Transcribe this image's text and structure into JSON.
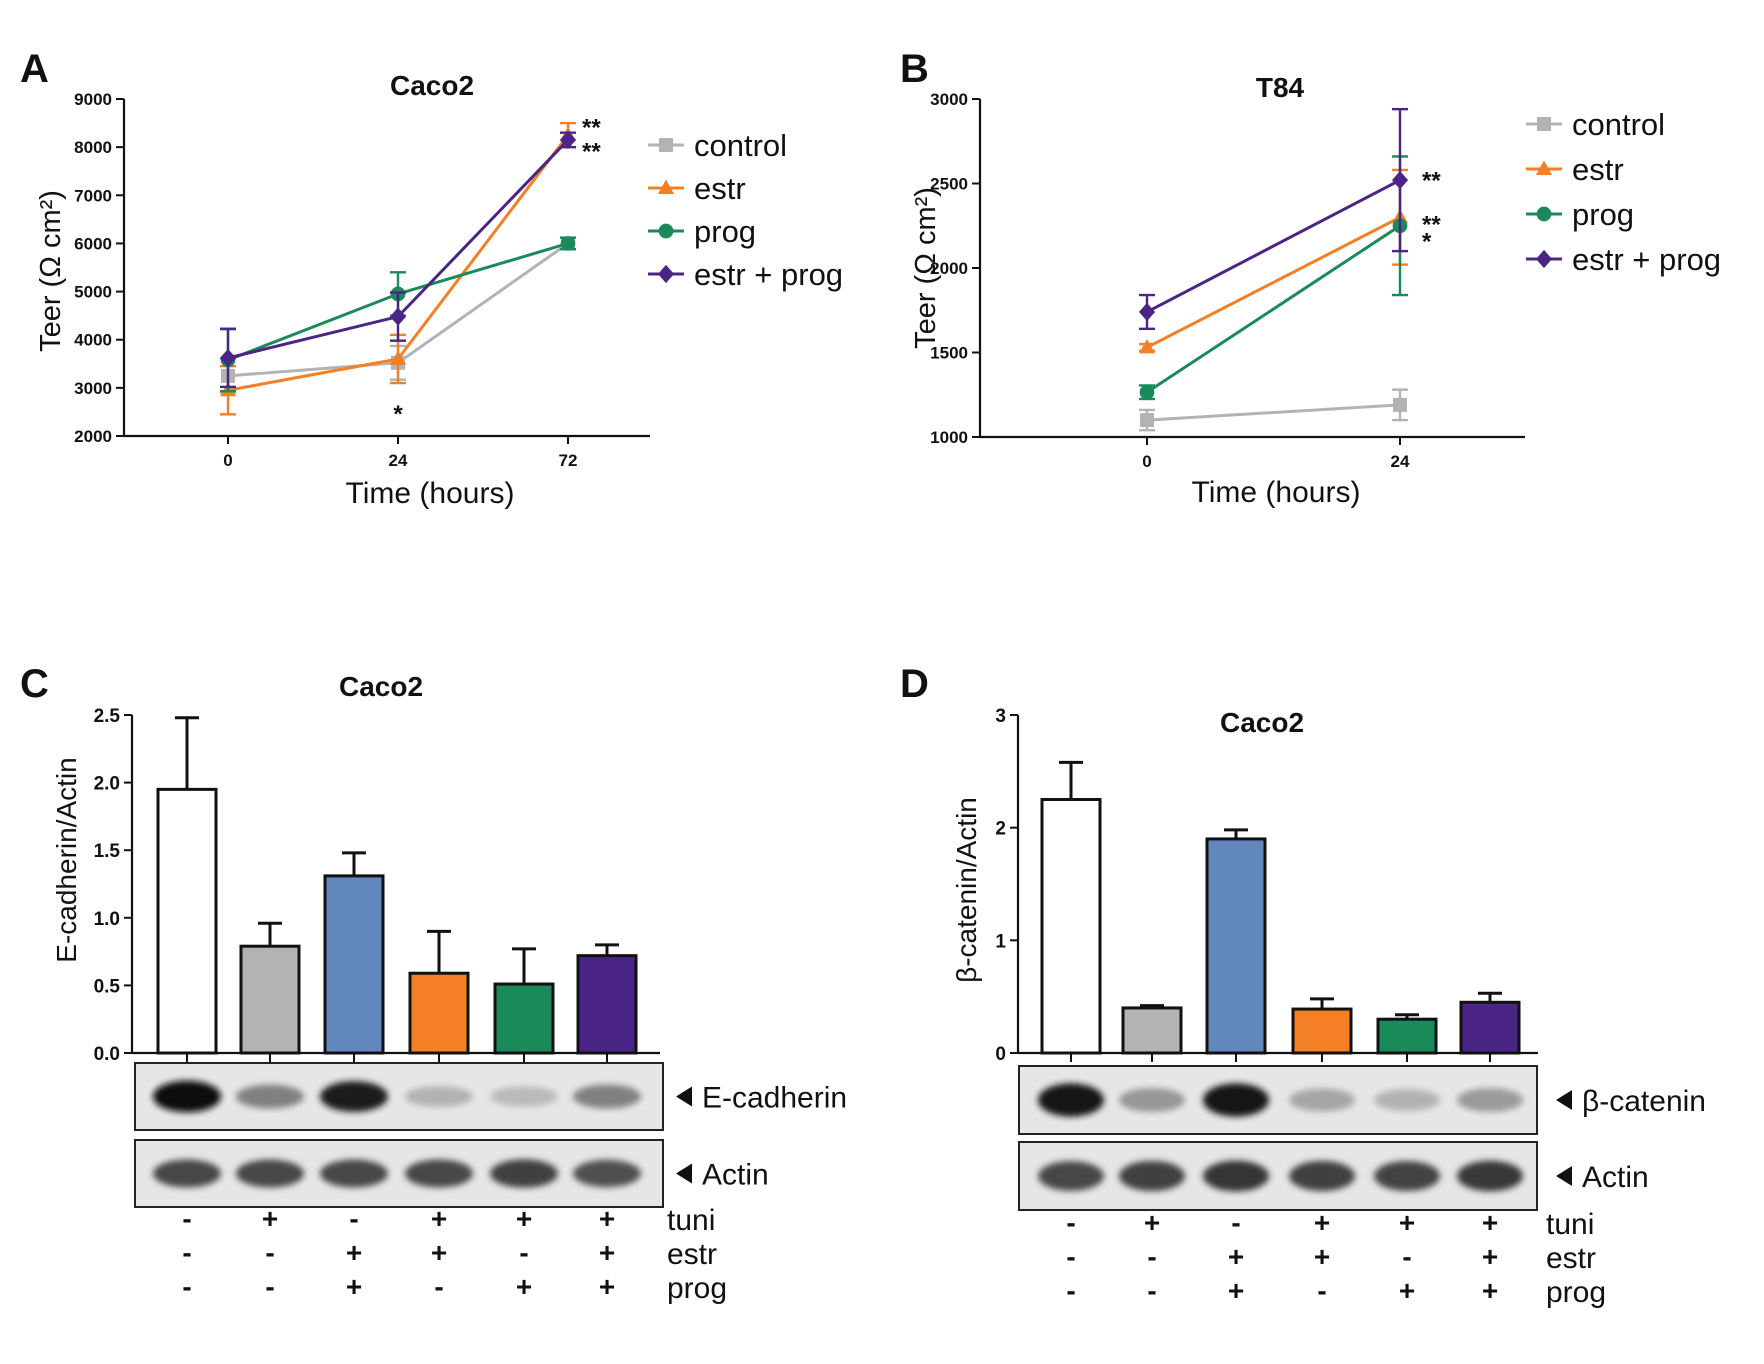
{
  "chart_data": [
    {
      "panel": "A",
      "type": "line",
      "title": "Caco2",
      "xlabel": "Time (hours)",
      "ylabel": "Teer (Ω cm²)",
      "categories": [
        "0",
        "24",
        "72"
      ],
      "ylim": [
        2000,
        9000
      ],
      "yticks": [
        2000,
        3000,
        4000,
        5000,
        6000,
        7000,
        8000,
        9000
      ],
      "series": [
        {
          "name": "control",
          "color": "#b3b3b3",
          "marker": "square",
          "values": [
            3250,
            3520,
            6000
          ],
          "errors": [
            350,
            350,
            120
          ]
        },
        {
          "name": "estr",
          "color": "#f47f24",
          "marker": "triangle",
          "values": [
            2950,
            3600,
            8250
          ],
          "errors": [
            500,
            500,
            250
          ]
        },
        {
          "name": "prog",
          "color": "#1a8a5a",
          "marker": "circle",
          "values": [
            3580,
            4950,
            6000
          ],
          "errors": [
            650,
            450,
            120
          ]
        },
        {
          "name": "estr + prog",
          "color": "#4b2585",
          "marker": "diamond",
          "values": [
            3620,
            4480,
            8150
          ],
          "errors": [
            600,
            500,
            150
          ]
        }
      ],
      "annotations": [
        {
          "text": "**",
          "category": "72",
          "value": 8450
        },
        {
          "text": "**",
          "category": "72",
          "value": 7950
        },
        {
          "text": "*",
          "category": "24",
          "value": 2500
        }
      ]
    },
    {
      "panel": "B",
      "type": "line",
      "title": "T84",
      "xlabel": "Time (hours)",
      "ylabel": "Teer (Ω cm²)",
      "categories": [
        "0",
        "24"
      ],
      "ylim": [
        1000,
        3000
      ],
      "yticks": [
        1000,
        1500,
        2000,
        2500,
        3000
      ],
      "series": [
        {
          "name": "control",
          "color": "#b3b3b3",
          "marker": "square",
          "values": [
            1100,
            1190
          ],
          "errors": [
            60,
            90
          ]
        },
        {
          "name": "estr",
          "color": "#f47f24",
          "marker": "triangle",
          "values": [
            1530,
            2300
          ],
          "errors": [
            20,
            280
          ]
        },
        {
          "name": "prog",
          "color": "#1a8a5a",
          "marker": "circle",
          "values": [
            1265,
            2250
          ],
          "errors": [
            40,
            410
          ]
        },
        {
          "name": "estr + prog",
          "color": "#4b2585",
          "marker": "diamond",
          "values": [
            1740,
            2520
          ],
          "errors": [
            100,
            420
          ]
        }
      ],
      "annotations": [
        {
          "text": "**",
          "category": "24",
          "value": 2530
        },
        {
          "text": "**",
          "category": "24",
          "value": 2270
        },
        {
          "text": "*",
          "category": "24",
          "value": 2170
        }
      ]
    },
    {
      "panel": "C",
      "type": "bar",
      "title": "Caco2",
      "xlabel": "",
      "ylabel": "E-cadherin/Actin",
      "ylim": [
        0,
        2.5
      ],
      "yticks": [
        "0.0",
        "0.5",
        "1.0",
        "1.5",
        "2.0",
        "2.5"
      ],
      "values": [
        1.95,
        0.79,
        1.31,
        0.59,
        0.51,
        0.72
      ],
      "errors": [
        0.53,
        0.17,
        0.17,
        0.31,
        0.26,
        0.08
      ],
      "colors": [
        "#ffffff",
        "#b3b3b3",
        "#6287bd",
        "#f47f24",
        "#1a8a5a",
        "#4b2585"
      ],
      "blot_labels": [
        "E-cadherin",
        "Actin"
      ],
      "conditions": [
        {
          "name": "tuni",
          "signs": [
            "-",
            "+",
            "-",
            "+",
            "+",
            "+"
          ]
        },
        {
          "name": "estr",
          "signs": [
            "-",
            "-",
            "+",
            "+",
            "-",
            "+"
          ]
        },
        {
          "name": "prog",
          "signs": [
            "-",
            "-",
            "+",
            "-",
            "+",
            "+"
          ]
        }
      ]
    },
    {
      "panel": "D",
      "type": "bar",
      "title": "Caco2",
      "xlabel": "",
      "ylabel": "β-catenin/Actin",
      "ylim": [
        0,
        3
      ],
      "yticks": [
        "0",
        "1",
        "2",
        "3"
      ],
      "values": [
        2.25,
        0.4,
        1.9,
        0.39,
        0.3,
        0.45
      ],
      "errors": [
        0.33,
        0.02,
        0.08,
        0.09,
        0.04,
        0.08
      ],
      "colors": [
        "#ffffff",
        "#b3b3b3",
        "#6287bd",
        "#f47f24",
        "#1a8a5a",
        "#4b2585"
      ],
      "blot_labels": [
        "β-catenin",
        "Actin"
      ],
      "conditions": [
        {
          "name": "tuni",
          "signs": [
            "-",
            "+",
            "-",
            "+",
            "+",
            "+"
          ]
        },
        {
          "name": "estr",
          "signs": [
            "-",
            "-",
            "+",
            "+",
            "-",
            "+"
          ]
        },
        {
          "name": "prog",
          "signs": [
            "-",
            "-",
            "+",
            "-",
            "+",
            "+"
          ]
        }
      ]
    }
  ]
}
